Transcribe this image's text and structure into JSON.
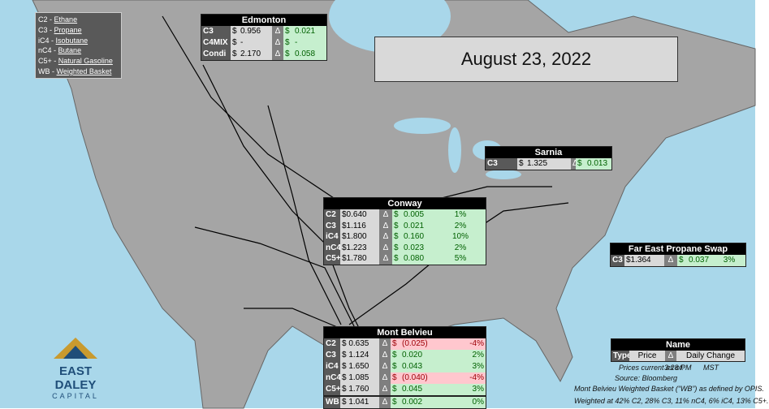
{
  "legend": {
    "separator": "-",
    "items": [
      {
        "code": "C2",
        "name": "Ethane"
      },
      {
        "code": "C3",
        "name": "Propane"
      },
      {
        "code": "iC4",
        "name": "Isobutane"
      },
      {
        "code": "nC4",
        "name": "Butane"
      },
      {
        "code": "C5+",
        "name": "Natural Gasoline"
      },
      {
        "code": "WB",
        "name": "Weighted Basket"
      }
    ]
  },
  "date": "August 23, 2022",
  "edmonton": {
    "title": "Edmonton",
    "rows": [
      [
        "C3",
        "$",
        "0.956",
        "Δ",
        "$",
        "0.021"
      ],
      [
        "C4MIX",
        "$",
        "-",
        "Δ",
        "$",
        "-"
      ],
      [
        "Condi",
        "$",
        "2.170",
        "Δ",
        "$",
        "0.058"
      ]
    ]
  },
  "sarnia": {
    "title": "Sarnia",
    "rows": [
      [
        "C3",
        "$",
        "1.325",
        "Δ",
        "$",
        "0.013"
      ]
    ]
  },
  "conway": {
    "title": "Conway",
    "rows": [
      [
        "C2",
        "$0.640",
        "Δ",
        "$",
        "0.005",
        "1%"
      ],
      [
        "C3",
        "$1.116",
        "Δ",
        "$",
        "0.021",
        "2%"
      ],
      [
        "iC4",
        "$1.800",
        "Δ",
        "$",
        "0.160",
        "10%"
      ],
      [
        "nC4",
        "$1.223",
        "Δ",
        "$",
        "0.023",
        "2%"
      ],
      [
        "C5+",
        "$1.780",
        "Δ",
        "$",
        "0.080",
        "5%"
      ]
    ]
  },
  "far_east": {
    "title": "Far East Propane Swap",
    "rows": [
      [
        "C3",
        "$1.364",
        "Δ",
        "$",
        "0.037",
        "3%"
      ]
    ]
  },
  "mont_belvieu": {
    "title": "Mont Belvieu",
    "rows": [
      [
        "C2",
        "$ 0.635",
        "Δ",
        "$",
        "(0.025)",
        "-4%"
      ],
      [
        "C3",
        "$ 1.124",
        "Δ",
        "$",
        "0.020",
        "2%"
      ],
      [
        "iC4",
        "$ 1.650",
        "Δ",
        "$",
        "0.043",
        "3%"
      ],
      [
        "nC4",
        "$ 1.085",
        "Δ",
        "$",
        "(0.040)",
        "-4%"
      ],
      [
        "C5+",
        "$ 1.760",
        "Δ",
        "$",
        "0.045",
        "3%"
      ],
      [
        "WB",
        "$ 1.041",
        "Δ",
        "$",
        "0.002",
        "0%"
      ]
    ]
  },
  "key": {
    "title": "Name",
    "rows": [
      [
        "Type",
        "Price",
        "Δ",
        "Daily Change"
      ]
    ]
  },
  "notes": {
    "prices_current": "Prices current as of:",
    "time": "3:28 PM",
    "zone": "MST",
    "source": "Source: Bloomberg",
    "basket_def": "Mont Belvieu Weighted Basket (“WB”) as defined by OPIS.",
    "weights": "Weighted at 42% C2, 28% C3, 11% nC4, 6% iC4, 13% C5+."
  },
  "logo": {
    "name": "EAST DALEY",
    "sub": "CAPITAL"
  }
}
